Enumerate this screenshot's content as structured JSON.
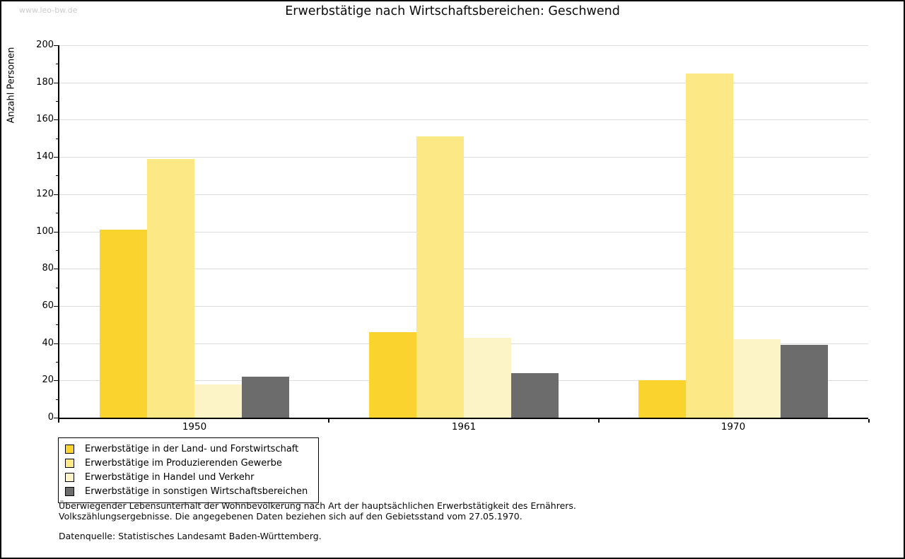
{
  "watermark": "www.leo-bw.de",
  "chart_data": {
    "type": "bar",
    "title": "Erwerbstätige nach Wirtschaftsbereichen: Geschwend",
    "ylabel": "Anzahl Personen",
    "categories": [
      "1950",
      "1961",
      "1970"
    ],
    "series": [
      {
        "name": "Erwerbstätige in der Land- und Forstwirtschaft",
        "color": "#FBD32E",
        "values": [
          101,
          46,
          20
        ]
      },
      {
        "name": "Erwerbstätige im Produzierenden Gewerbe",
        "color": "#FCE885",
        "values": [
          139,
          151,
          185
        ]
      },
      {
        "name": "Erwerbstätige in Handel und Verkehr",
        "color": "#FCF4C6",
        "values": [
          18,
          43,
          42
        ]
      },
      {
        "name": "Erwerbstätige in sonstigen Wirtschaftsbereichen",
        "color": "#6C6C6C",
        "values": [
          22,
          24,
          39
        ]
      }
    ],
    "ylim": [
      0,
      200
    ],
    "ytick_step": 20,
    "ytick_minor_step": 10,
    "grid": true,
    "legend_position": "bottom-left",
    "axis_color": "#000000",
    "gridline_color": "#dcdcdc"
  },
  "notes": {
    "line1": "Überwiegender Lebensunterhalt der Wohnbevölkerung nach Art der hauptsächlichen Erwerbstätigkeit des Ernährers.",
    "line2": "Volkszählungsergebnisse. Die angegebenen Daten beziehen sich auf den Gebietsstand vom 27.05.1970.",
    "source": "Datenquelle: Statistisches Landesamt Baden-Württemberg."
  }
}
